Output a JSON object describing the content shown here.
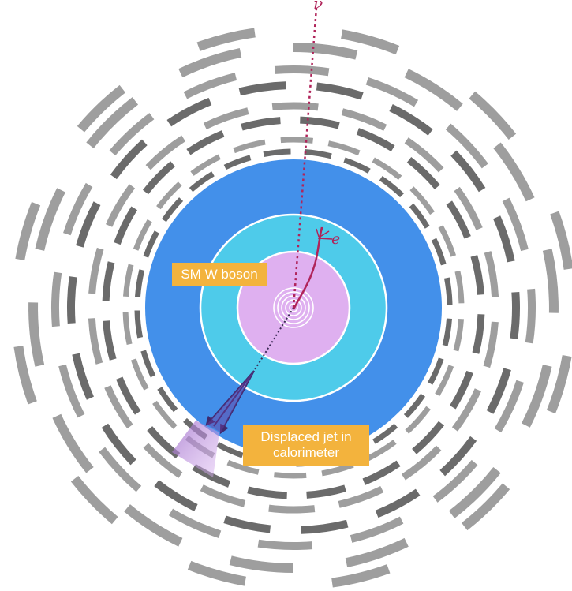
{
  "labels": {
    "w_boson": "SM W boson",
    "jet_line1": "Displaced jet in",
    "jet_line2": "calorimeter",
    "neutrino": "ν",
    "electron": "e"
  },
  "colors": {
    "outer_disc": "#4390ea",
    "middle_disc": "#4ecbea",
    "inner_disc": "#dfb0f0",
    "label_box": "#f3b33d",
    "track": "#b0245a",
    "jet": "#4a2a7a",
    "segment_dark": "#6b6b6b",
    "segment_light": "#9e9e9e"
  }
}
